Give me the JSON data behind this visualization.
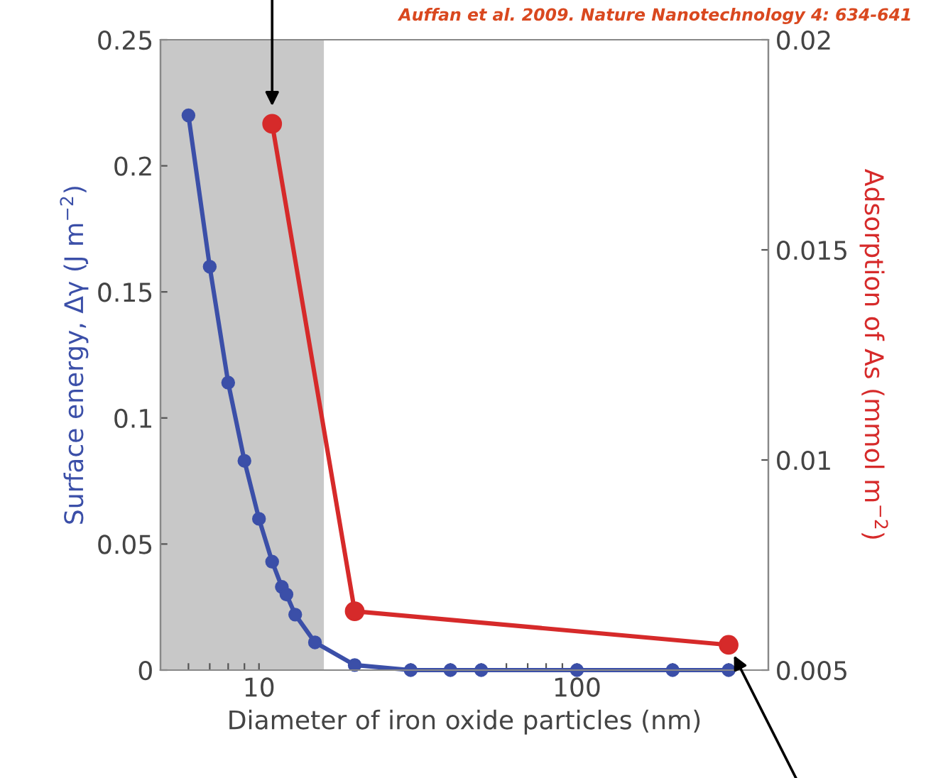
{
  "chart_data": {
    "type": "line",
    "xlabel": "Diameter of iron oxide particles (nm)",
    "ylabel": "Surface energy, Δγ (J m$^{−2}$)",
    "y2label": "Adsorption of As (mmol m$^{−2}$)",
    "annotations": [
      "Auffan et al. 2009. Nature Nanotechnology 4: 634-641"
    ],
    "log": "x",
    "marker": "circle",
    "grid": false,
    "xlim": [
      4.9,
      400
    ],
    "xticks": [
      {
        "value": 6,
        "label": null
      },
      {
        "value": 7,
        "label": null
      },
      {
        "value": 8,
        "label": null
      },
      {
        "value": 9,
        "label": null
      },
      10,
      {
        "value": 20,
        "label": null
      },
      {
        "value": 30,
        "label": null
      },
      {
        "value": 40,
        "label": null
      },
      {
        "value": 50,
        "label": null
      },
      {
        "value": 60,
        "label": null
      },
      {
        "value": 70,
        "label": null
      },
      {
        "value": 80,
        "label": null
      },
      {
        "value": 90,
        "label": null
      },
      100,
      {
        "value": 200,
        "label": null
      },
      {
        "value": 300,
        "label": null
      }
    ],
    "ylim": [
      0,
      0.25
    ],
    "yticks": [
      0,
      0.05,
      0.1,
      0.15,
      0.2,
      0.25
    ],
    "y2lim": [
      0.005,
      0.02
    ],
    "y2ticks": [
      0.005,
      0.01,
      0.015,
      0.02
    ],
    "bands": [
      {
        "axis": "x",
        "from": 4.9,
        "to": 16,
        "color": "#c8c8c8"
      }
    ],
    "series": [
      {
        "color": "#3b4fa8",
        "x": [
          6,
          7,
          8,
          9,
          10,
          11,
          11.8,
          12.2,
          13,
          15,
          20,
          30,
          40,
          50,
          100,
          200,
          300
        ],
        "values": [
          0.22,
          0.16,
          0.114,
          0.083,
          0.06,
          0.043,
          0.033,
          0.03,
          0.022,
          0.011,
          0.002,
          0,
          0,
          0,
          0,
          0,
          0
        ]
      },
      {
        "color": "#d62a2a",
        "axis": "y2",
        "x": [
          11,
          20,
          300
        ],
        "values": [
          0.018,
          0.0064,
          0.0056
        ]
      }
    ]
  }
}
